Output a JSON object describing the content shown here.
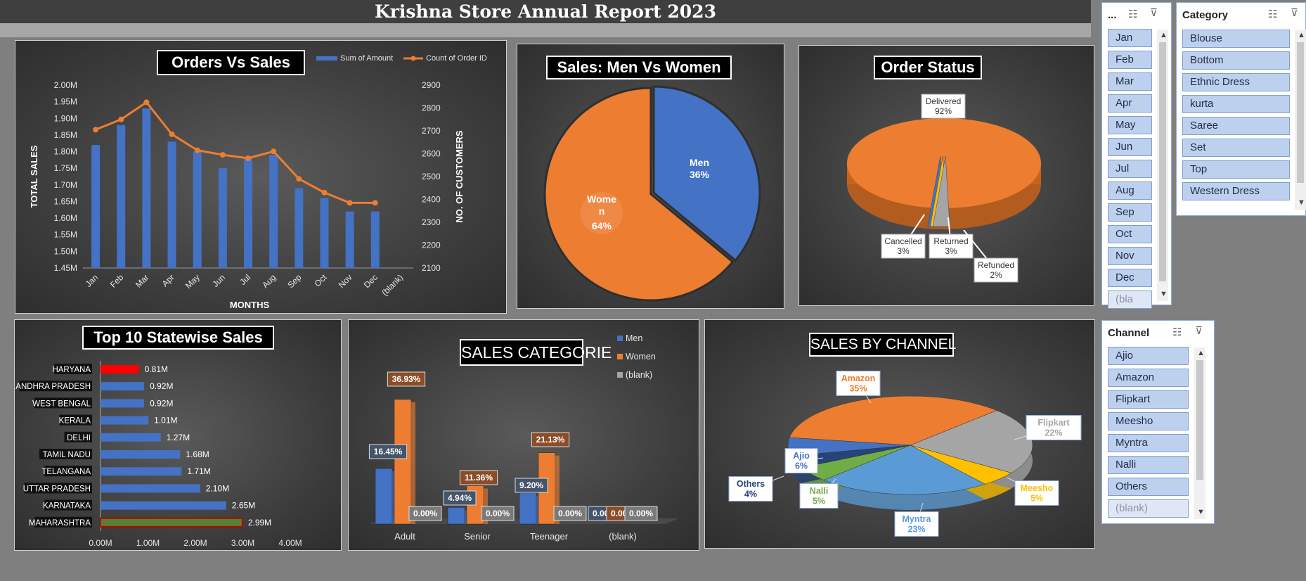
{
  "page": {
    "title": "Krishna Store Annual Report 2023"
  },
  "chart_data": [
    {
      "type": "bar+line",
      "title": "Orders Vs Sales",
      "categories": [
        "Jan",
        "Feb",
        "Mar",
        "Apr",
        "May",
        "Jun",
        "Jul",
        "Aug",
        "Sep",
        "Oct",
        "Nov",
        "Dec",
        "(blank)"
      ],
      "series": [
        {
          "name": "Sum of Amount",
          "type": "bar",
          "axis": "left",
          "values": [
            1.82,
            1.88,
            1.93,
            1.83,
            1.8,
            1.75,
            1.78,
            1.79,
            1.69,
            1.66,
            1.62,
            1.62,
            null
          ]
        },
        {
          "name": "Count of Order ID",
          "type": "line",
          "axis": "right",
          "values": [
            2705,
            2750,
            2825,
            2685,
            2615,
            2595,
            2580,
            2610,
            2490,
            2430,
            2385,
            2385,
            null
          ]
        }
      ],
      "y_left": {
        "label": "TOTAL SALES",
        "range": [
          1.45,
          2.0
        ],
        "ticks": [
          "1.45M",
          "1.50M",
          "1.55M",
          "1.60M",
          "1.65M",
          "1.70M",
          "1.75M",
          "1.80M",
          "1.85M",
          "1.90M",
          "1.95M",
          "2.00M"
        ]
      },
      "y_right": {
        "label": "NO. OF CUSTOMERS",
        "range": [
          2100,
          2900
        ],
        "ticks": [
          "2100",
          "2200",
          "2300",
          "2400",
          "2500",
          "2600",
          "2700",
          "2800",
          "2900"
        ]
      },
      "xlabel": "MONTHS",
      "legend": "top-right",
      "colors": {
        "bar": "#4472c4",
        "line": "#ed7d31"
      }
    },
    {
      "type": "pie",
      "title": "Sales: Men Vs Women",
      "slices": [
        {
          "label": "Men",
          "value": 36,
          "text": "36%",
          "color": "#4472c4"
        },
        {
          "label": "Women",
          "label_lines": [
            "Wome",
            "n"
          ],
          "value": 64,
          "text": "64%",
          "color": "#ed7d31"
        }
      ]
    },
    {
      "type": "pie",
      "title": "Order Status",
      "slices": [
        {
          "label": "Delivered",
          "value": 92,
          "text": "92%",
          "color": "#ed7d31"
        },
        {
          "label": "Cancelled",
          "value": 3,
          "text": "3%",
          "color": "#4472c4"
        },
        {
          "label": "Returned",
          "value": 3,
          "text": "3%",
          "color": "#ffc000"
        },
        {
          "label": "Refunded",
          "value": 2,
          "text": "2%",
          "color": "#a5a5a5"
        }
      ]
    },
    {
      "type": "bar",
      "orientation": "horizontal",
      "title": "Top 10 Statewise Sales",
      "categories": [
        "HARYANA",
        "ANDHRA PRADESH",
        "WEST BENGAL",
        "KERALA",
        "DELHI",
        "TAMIL NADU",
        "TELANGANA",
        "UTTAR PRADESH",
        "KARNATAKA",
        "MAHARASHTRA"
      ],
      "values": [
        0.81,
        0.92,
        0.92,
        1.01,
        1.27,
        1.68,
        1.71,
        2.1,
        2.65,
        2.99
      ],
      "value_labels": [
        "0.81M",
        "0.92M",
        "0.92M",
        "1.01M",
        "1.27M",
        "1.68M",
        "1.71M",
        "2.10M",
        "2.65M",
        "2.99M"
      ],
      "xlim": [
        0,
        4
      ],
      "x_ticks": [
        "0.00M",
        "1.00M",
        "2.00M",
        "3.00M",
        "4.00M"
      ],
      "colors": {
        "default": "#4472c4",
        "min": "#ff0000",
        "max": "#548235"
      }
    },
    {
      "type": "bar",
      "title": "SALES CATEGORIE",
      "categories": [
        "Adult",
        "Senior",
        "Teenager",
        "(blank)"
      ],
      "series": [
        {
          "name": "Men",
          "color": "#4472c4",
          "values": [
            16.45,
            4.94,
            9.2,
            0.0
          ],
          "labels": [
            "16.45%",
            "4.94%",
            "9.20%",
            "0.00%"
          ]
        },
        {
          "name": "Women",
          "color": "#ed7d31",
          "values": [
            36.93,
            11.36,
            21.13,
            0.0
          ],
          "labels": [
            "36.93%",
            "11.36%",
            "21.13%",
            "0.00%"
          ]
        },
        {
          "name": "(blank)",
          "color": "#a5a5a5",
          "values": [
            0.0,
            0.0,
            0.0,
            0.0
          ],
          "labels": [
            "0.00%",
            "0.00%",
            "0.00%",
            "0.00%"
          ]
        }
      ],
      "legend": "top-right"
    },
    {
      "type": "pie",
      "title": "SALES BY CHANNEL",
      "slices": [
        {
          "label": "Amazon",
          "value": 35,
          "text": "35%",
          "color": "#ed7d31"
        },
        {
          "label": "Flipkart",
          "value": 22,
          "text": "22%",
          "color": "#a5a5a5"
        },
        {
          "label": "Meesho",
          "value": 5,
          "text": "5%",
          "color": "#ffc000"
        },
        {
          "label": "Myntra",
          "value": 23,
          "text": "23%",
          "color": "#5b9bd5"
        },
        {
          "label": "Nalli",
          "value": 5,
          "text": "5%",
          "color": "#70ad47"
        },
        {
          "label": "Others",
          "value": 4,
          "text": "4%",
          "color": "#264478"
        },
        {
          "label": "Ajio",
          "value": 6,
          "text": "6%",
          "color": "#4472c4"
        }
      ]
    }
  ],
  "slicers": {
    "month": {
      "title": "...",
      "items": [
        "Jan",
        "Feb",
        "Mar",
        "Apr",
        "May",
        "Jun",
        "Jul",
        "Aug",
        "Sep",
        "Oct",
        "Nov",
        "Dec",
        "(bla"
      ]
    },
    "category": {
      "title": "Category",
      "items": [
        "Blouse",
        "Bottom",
        "Ethnic Dress",
        "kurta",
        "Saree",
        "Set",
        "Top",
        "Western Dress"
      ]
    },
    "channel": {
      "title": "Channel",
      "items": [
        "Ajio",
        "Amazon",
        "Flipkart",
        "Meesho",
        "Myntra",
        "Nalli",
        "Others",
        "(blank)"
      ]
    }
  }
}
